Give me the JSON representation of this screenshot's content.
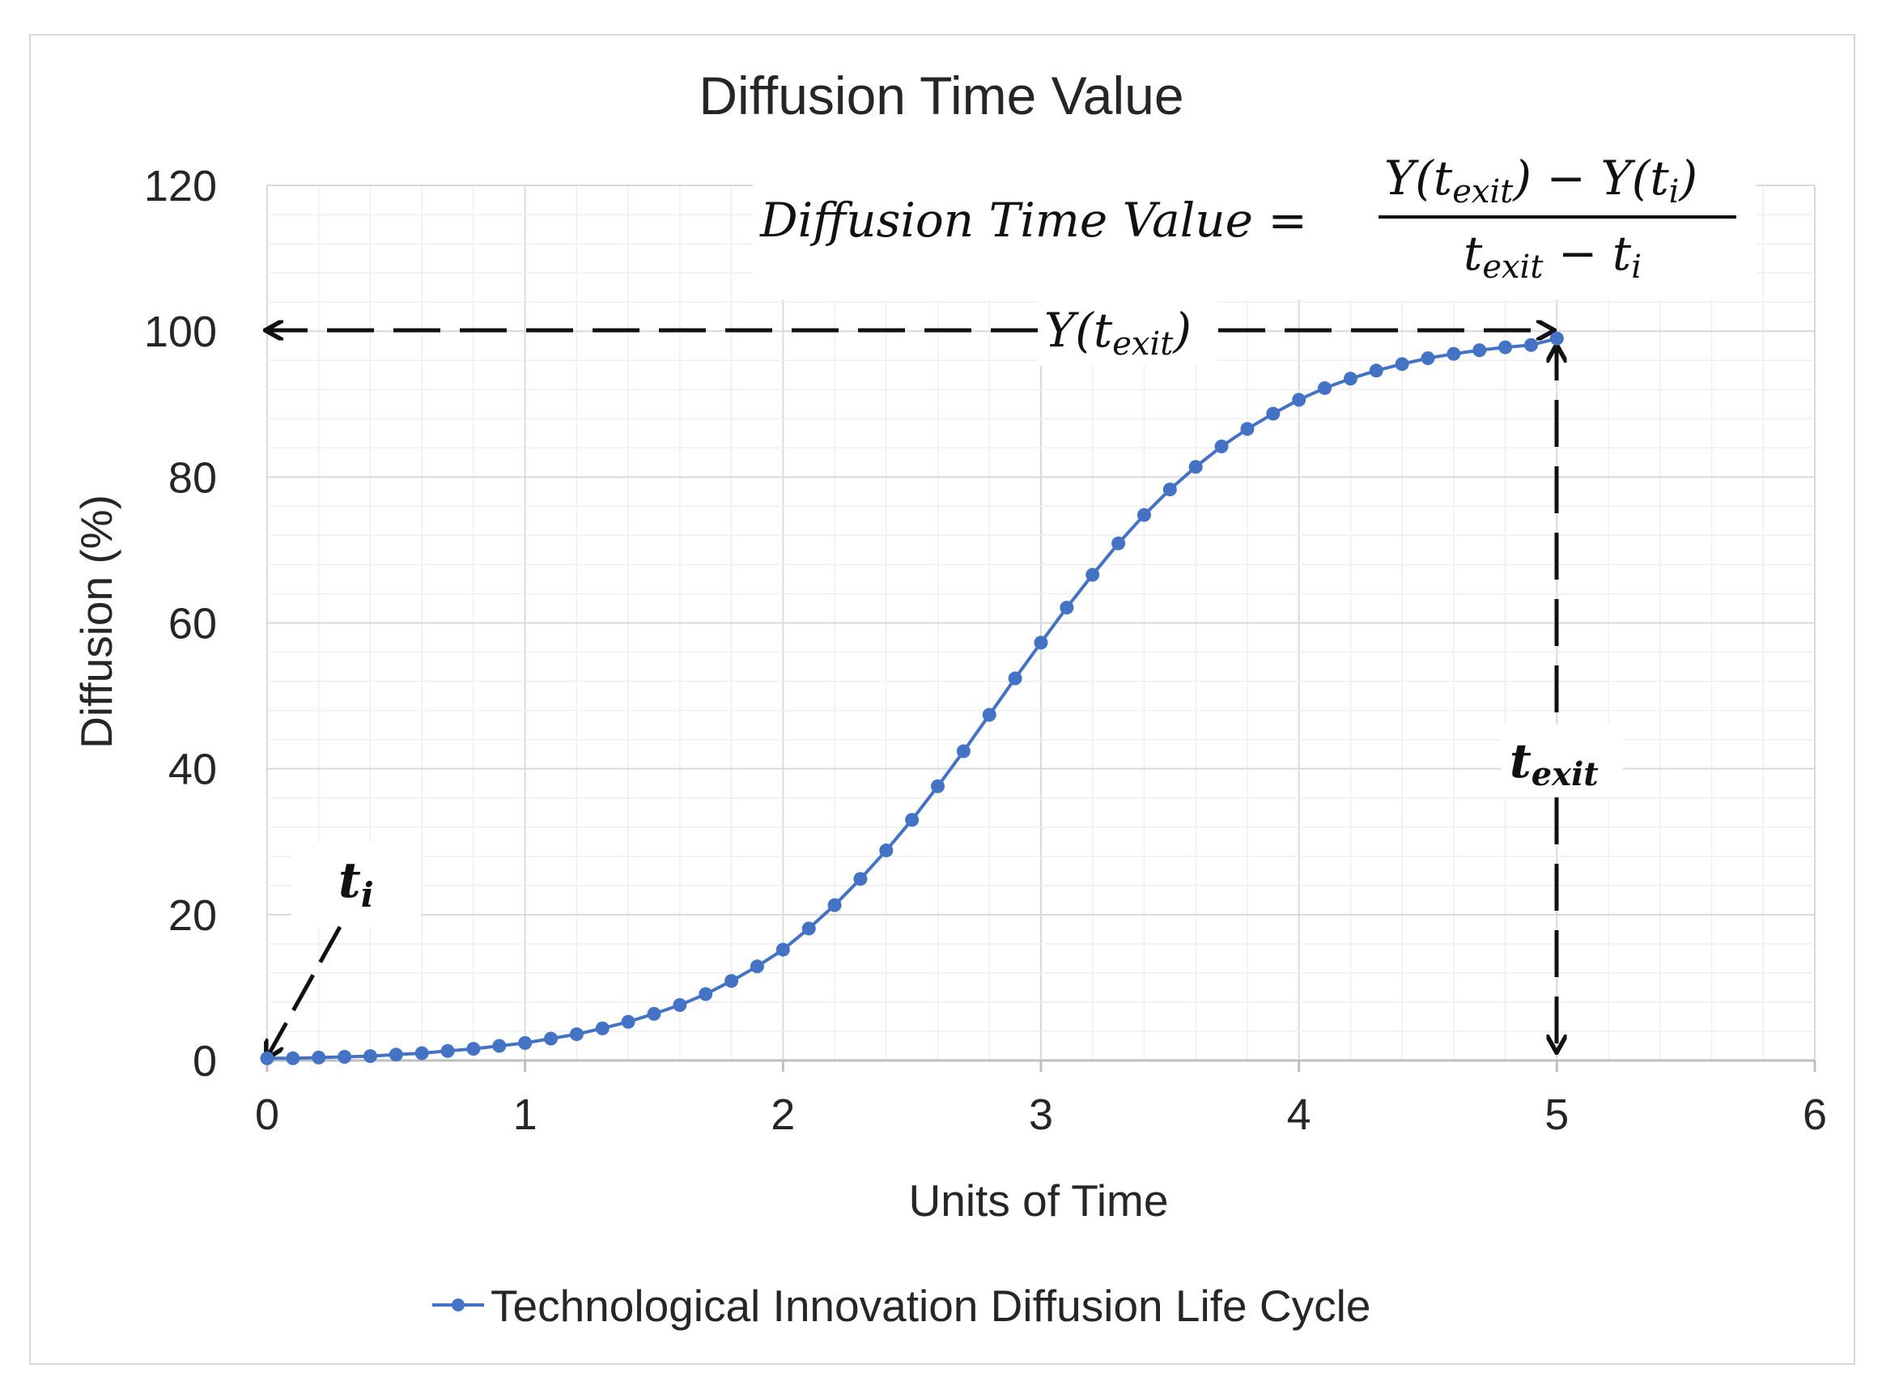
{
  "chart_data": {
    "type": "line",
    "title": "Diffusion Time Value",
    "xlabel": "Units of Time",
    "ylabel": "Diffusion (%)",
    "xlim": [
      0,
      6
    ],
    "ylim": [
      0,
      120
    ],
    "x_ticks": [
      "0",
      "1",
      "2",
      "3",
      "4",
      "5",
      "6"
    ],
    "y_ticks": [
      "0",
      "20",
      "40",
      "60",
      "80",
      "100",
      "120"
    ],
    "grid": "major and minor",
    "legend_position": "bottom",
    "color": "#4472C4",
    "series": [
      {
        "name": "Technological Innovation Diffusion Life Cycle",
        "x": [
          0,
          0.1,
          0.2,
          0.3,
          0.4,
          0.5,
          0.6,
          0.7,
          0.8,
          0.9,
          1.0,
          1.1,
          1.2,
          1.3,
          1.4,
          1.5,
          1.6,
          1.7,
          1.8,
          1.9,
          2.0,
          2.1,
          2.2,
          2.3,
          2.4,
          2.5,
          2.6,
          2.7,
          2.8,
          2.9,
          3.0,
          3.1,
          3.2,
          3.3,
          3.4,
          3.5,
          3.6,
          3.7,
          3.8,
          3.9,
          4.0,
          4.1,
          4.2,
          4.3,
          4.4,
          4.5,
          4.6,
          4.7,
          4.8,
          4.9,
          5.0
        ],
        "values": [
          0.3,
          0.3,
          0.4,
          0.5,
          0.6,
          0.8,
          1.0,
          1.3,
          1.6,
          2.0,
          2.4,
          3.0,
          3.6,
          4.4,
          5.3,
          6.4,
          7.6,
          9.1,
          10.9,
          12.9,
          15.2,
          18.1,
          21.3,
          24.9,
          28.8,
          33.0,
          37.6,
          42.4,
          47.4,
          52.4,
          57.3,
          62.1,
          66.6,
          70.9,
          74.8,
          78.3,
          81.4,
          84.2,
          86.6,
          88.7,
          90.6,
          92.2,
          93.5,
          94.6,
          95.5,
          96.3,
          96.9,
          97.4,
          97.8,
          98.1,
          99.0
        ]
      }
    ],
    "annotations": {
      "formula_lhs": "Diffusion Time Value =",
      "formula_numerator": "Y(t_exit) − Y(t_i)",
      "formula_denominator": "t_exit − t_i",
      "y_exit_label": "Y(t_exit)",
      "t_exit_label": "t_exit",
      "t_i_label": "t_i"
    }
  }
}
